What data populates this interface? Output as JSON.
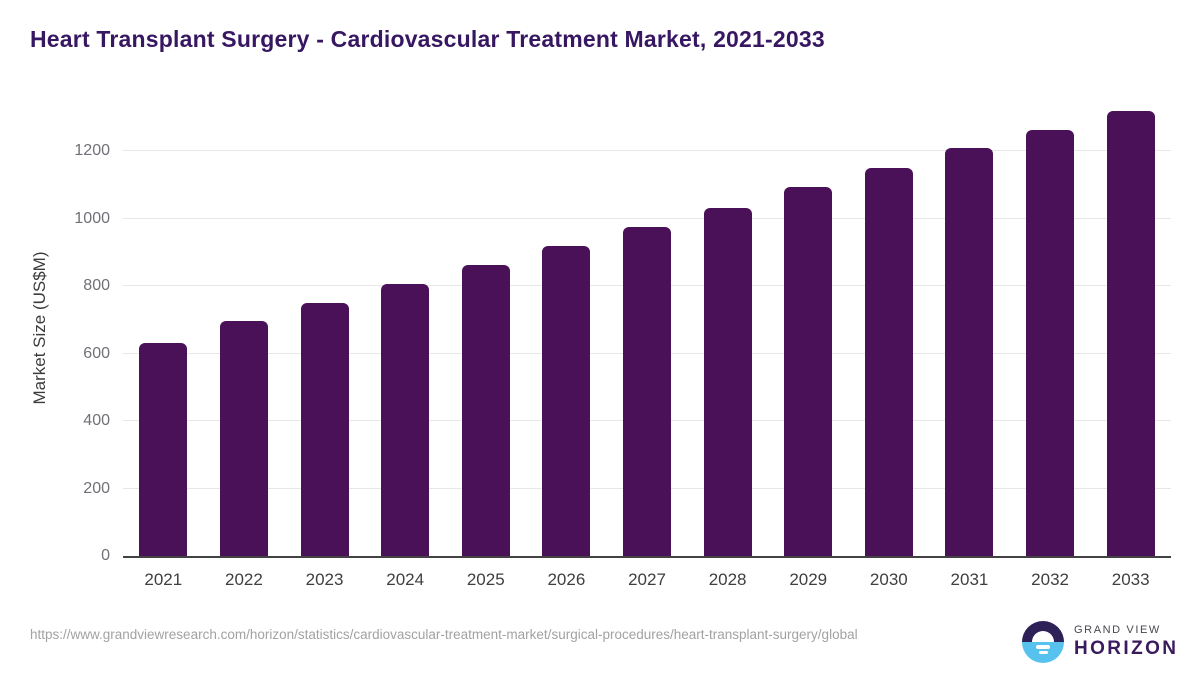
{
  "chart_data": {
    "type": "bar",
    "title": "Heart Transplant Surgery - Cardiovascular Treatment Market, 2021-2033",
    "categories": [
      "2021",
      "2022",
      "2023",
      "2024",
      "2025",
      "2026",
      "2027",
      "2028",
      "2029",
      "2030",
      "2031",
      "2032",
      "2033"
    ],
    "values": [
      630,
      696,
      751,
      807,
      862,
      918,
      975,
      1032,
      1092,
      1150,
      1208,
      1263,
      1318
    ],
    "xlabel": "",
    "ylabel": "Market Size (US$M)",
    "ylim": [
      0,
      1350
    ],
    "yticks": [
      0,
      200,
      400,
      600,
      800,
      1000,
      1200
    ],
    "grid": true,
    "legend": false,
    "bar_color": "#4a1158"
  },
  "colors": {
    "title": "#371761",
    "bar": "#4a1158",
    "axis_line": "#424242",
    "gridline": "#e7e7e7",
    "logo_purple": "#2d2157",
    "logo_blue": "#58c2ef"
  },
  "footer": {
    "source_url": "https://www.grandviewresearch.com/horizon/statistics/cardiovascular-treatment-market/surgical-procedures/heart-transplant-surgery/global",
    "logo": {
      "top": "GRAND VIEW",
      "bottom": "HORIZON"
    }
  }
}
